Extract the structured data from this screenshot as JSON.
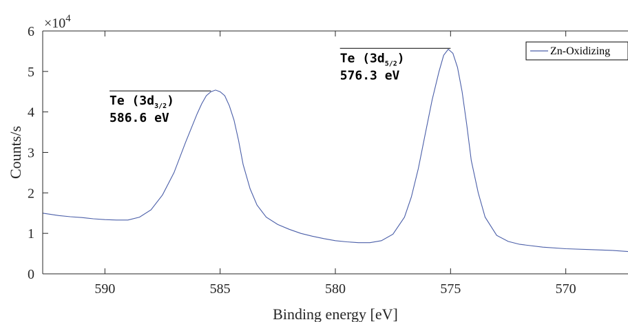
{
  "chart_data": {
    "type": "line",
    "xlabel": "Binding energy [eV]",
    "ylabel": "Counts/s",
    "y_exponent_label": "×10",
    "y_exponent_power": "4",
    "xlim": [
      592.7,
      567.3
    ],
    "ylim": [
      0,
      6
    ],
    "x_reversed": true,
    "x_ticks": [
      590,
      585,
      580,
      575,
      570
    ],
    "y_ticks": [
      0,
      1,
      2,
      3,
      4,
      5,
      6
    ],
    "grid": false,
    "legend_position": "top-right",
    "series": [
      {
        "name": "Zn-Oxidizing",
        "color": "#4a5ea8",
        "x": [
          592.7,
          592.0,
          591.5,
          591.0,
          590.5,
          590.0,
          589.5,
          589.0,
          588.5,
          588.0,
          587.5,
          587.0,
          586.5,
          586.0,
          585.8,
          585.6,
          585.4,
          585.2,
          585.0,
          584.8,
          584.6,
          584.4,
          584.2,
          584.0,
          583.7,
          583.4,
          583.0,
          582.5,
          582.0,
          581.5,
          581.0,
          580.5,
          580.0,
          579.5,
          579.0,
          578.5,
          578.0,
          577.5,
          577.0,
          576.7,
          576.4,
          576.1,
          575.8,
          575.5,
          575.3,
          575.1,
          574.9,
          574.7,
          574.5,
          574.3,
          574.1,
          573.8,
          573.5,
          573.0,
          572.5,
          572.0,
          571.0,
          570.0,
          569.0,
          568.0,
          567.3
        ],
        "values": [
          1.5,
          1.44,
          1.41,
          1.39,
          1.36,
          1.34,
          1.33,
          1.33,
          1.4,
          1.58,
          1.95,
          2.5,
          3.25,
          3.95,
          4.2,
          4.4,
          4.5,
          4.54,
          4.5,
          4.4,
          4.15,
          3.8,
          3.3,
          2.7,
          2.1,
          1.7,
          1.4,
          1.22,
          1.1,
          1.0,
          0.93,
          0.87,
          0.82,
          0.79,
          0.77,
          0.77,
          0.82,
          0.98,
          1.4,
          1.9,
          2.6,
          3.45,
          4.3,
          5.0,
          5.4,
          5.55,
          5.45,
          5.1,
          4.5,
          3.7,
          2.8,
          2.0,
          1.4,
          0.95,
          0.8,
          0.73,
          0.66,
          0.62,
          0.6,
          0.58,
          0.55
        ]
      }
    ],
    "annotations": [
      {
        "label": "Te (3d",
        "sub": "3/2",
        "close": ")",
        "value_label": "586.6 eV",
        "x_start": 589.8,
        "x_end": 585.4,
        "y": 4.52
      },
      {
        "label": "Te (3d",
        "sub": "5/2",
        "close": ")",
        "value_label": "576.3 eV",
        "x_start": 579.8,
        "x_end": 575.0,
        "y": 5.57
      }
    ]
  }
}
